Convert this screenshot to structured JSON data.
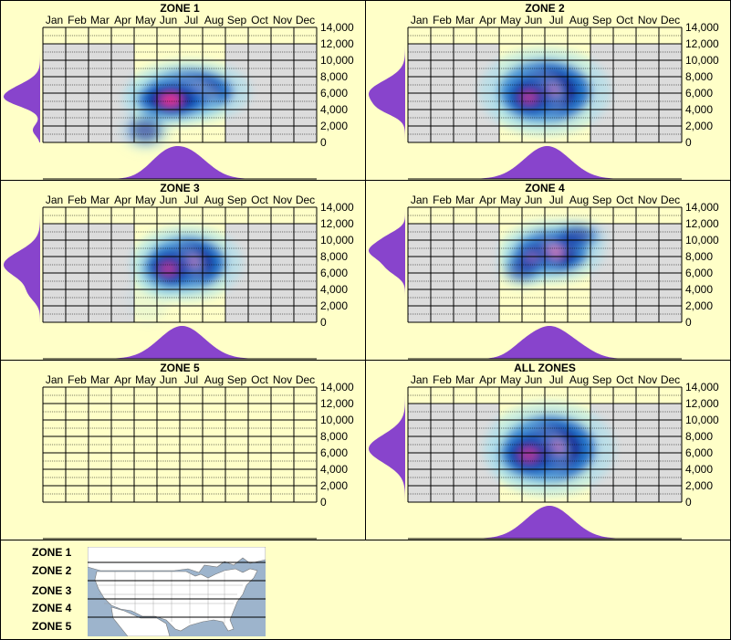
{
  "chart_data": [
    {
      "type": "heatmap",
      "title": "ZONE 1",
      "categories": [
        "Jan",
        "Feb",
        "Mar",
        "Apr",
        "May",
        "Jun",
        "Jul",
        "Aug",
        "Sep",
        "Oct",
        "Nov",
        "Dec"
      ],
      "ylim": [
        0,
        14000
      ],
      "yticks": [
        "0",
        "2,000",
        "4,000",
        "6,000",
        "8,000",
        "10,000",
        "12,000",
        "14,000"
      ],
      "shade_months": [
        0,
        1,
        2,
        3,
        8,
        9,
        10,
        11
      ],
      "shade_top": 12000,
      "empty": false,
      "hotspots": [
        {
          "month": 6.4,
          "elev": 6200,
          "sx": 0.95,
          "sy": 1000,
          "w": 1.0
        },
        {
          "month": 5.6,
          "elev": 5200,
          "sx": 0.8,
          "sy": 900,
          "w": 0.8
        },
        {
          "month": 4.5,
          "elev": 1500,
          "sx": 0.6,
          "sy": 1000,
          "w": 0.25
        }
      ],
      "elev_curve": [
        {
          "elev": 6000,
          "s": 1200,
          "w": 1.0
        },
        {
          "elev": 5000,
          "s": 800,
          "w": 0.4
        },
        {
          "elev": 1500,
          "s": 700,
          "w": 0.25
        }
      ],
      "month_curve": [
        {
          "month": 6.3,
          "s": 0.9,
          "w": 1.0
        },
        {
          "month": 5.2,
          "s": 0.7,
          "w": 0.5
        }
      ]
    },
    {
      "type": "heatmap",
      "title": "ZONE 2",
      "categories": [
        "Jan",
        "Feb",
        "Mar",
        "Apr",
        "May",
        "Jun",
        "Jul",
        "Aug",
        "Sep",
        "Oct",
        "Nov",
        "Dec"
      ],
      "ylim": [
        0,
        14000
      ],
      "yticks": [
        "0",
        "2,000",
        "4,000",
        "6,000",
        "8,000",
        "10,000",
        "12,000",
        "14,000"
      ],
      "shade_months": [
        0,
        1,
        2,
        3,
        8,
        9,
        10,
        11
      ],
      "shade_top": 12000,
      "empty": false,
      "hotspots": [
        {
          "month": 6.0,
          "elev": 6200,
          "sx": 1.0,
          "sy": 1400,
          "w": 1.0
        },
        {
          "month": 5.3,
          "elev": 5500,
          "sx": 0.7,
          "sy": 1200,
          "w": 0.5
        }
      ],
      "elev_curve": [
        {
          "elev": 6000,
          "s": 1500,
          "w": 1.0
        },
        {
          "elev": 4000,
          "s": 800,
          "w": 0.3
        }
      ],
      "month_curve": [
        {
          "month": 6.1,
          "s": 1.0,
          "w": 1.0
        }
      ]
    },
    {
      "type": "heatmap",
      "title": "ZONE 3",
      "categories": [
        "Jan",
        "Feb",
        "Mar",
        "Apr",
        "May",
        "Jun",
        "Jul",
        "Aug",
        "Sep",
        "Oct",
        "Nov",
        "Dec"
      ],
      "ylim": [
        0,
        14000
      ],
      "yticks": [
        "0",
        "2,000",
        "4,000",
        "6,000",
        "8,000",
        "10,000",
        "12,000",
        "14,000"
      ],
      "shade_months": [
        0,
        1,
        2,
        3,
        8,
        9,
        10,
        11
      ],
      "shade_top": 12000,
      "empty": false,
      "hotspots": [
        {
          "month": 6.3,
          "elev": 7200,
          "sx": 0.85,
          "sy": 1200,
          "w": 1.0
        },
        {
          "month": 5.5,
          "elev": 6500,
          "sx": 0.7,
          "sy": 1200,
          "w": 0.5
        },
        {
          "month": 4.6,
          "elev": 3000,
          "sx": 0.5,
          "sy": 1200,
          "w": 0.15
        }
      ],
      "elev_curve": [
        {
          "elev": 7000,
          "s": 1600,
          "w": 1.0
        },
        {
          "elev": 3500,
          "s": 1000,
          "w": 0.25
        }
      ],
      "month_curve": [
        {
          "month": 6.1,
          "s": 1.0,
          "w": 1.0
        }
      ]
    },
    {
      "type": "heatmap",
      "title": "ZONE 4",
      "categories": [
        "Jan",
        "Feb",
        "Mar",
        "Apr",
        "May",
        "Jun",
        "Jul",
        "Aug",
        "Sep",
        "Oct",
        "Nov",
        "Dec"
      ],
      "ylim": [
        0,
        14000
      ],
      "yticks": [
        "0",
        "2,000",
        "4,000",
        "6,000",
        "8,000",
        "10,000",
        "12,000",
        "14,000"
      ],
      "shade_months": [
        0,
        1,
        2,
        3,
        8,
        9,
        10,
        11
      ],
      "shade_top": 12000,
      "empty": false,
      "hotspots": [
        {
          "month": 6.3,
          "elev": 8600,
          "sx": 0.8,
          "sy": 1000,
          "w": 1.0
        },
        {
          "month": 5.4,
          "elev": 7800,
          "sx": 0.6,
          "sy": 1000,
          "w": 0.45
        },
        {
          "month": 7.4,
          "elev": 10500,
          "sx": 0.7,
          "sy": 800,
          "w": 0.3
        },
        {
          "month": 5.0,
          "elev": 6500,
          "sx": 0.6,
          "sy": 1000,
          "w": 0.2
        }
      ],
      "elev_curve": [
        {
          "elev": 8700,
          "s": 1100,
          "w": 1.0
        },
        {
          "elev": 6500,
          "s": 900,
          "w": 0.4
        },
        {
          "elev": 10500,
          "s": 800,
          "w": 0.3
        }
      ],
      "month_curve": [
        {
          "month": 6.2,
          "s": 0.8,
          "w": 1.0
        },
        {
          "month": 5.0,
          "s": 0.6,
          "w": 0.3
        },
        {
          "month": 7.5,
          "s": 0.7,
          "w": 0.3
        }
      ]
    },
    {
      "type": "heatmap",
      "title": "ZONE 5",
      "categories": [
        "Jan",
        "Feb",
        "Mar",
        "Apr",
        "May",
        "Jun",
        "Jul",
        "Aug",
        "Sep",
        "Oct",
        "Nov",
        "Dec"
      ],
      "ylim": [
        0,
        14000
      ],
      "yticks": [
        "0",
        "2,000",
        "4,000",
        "6,000",
        "8,000",
        "10,000",
        "12,000",
        "14,000"
      ],
      "shade_months": [],
      "shade_top": 12000,
      "empty": true,
      "hotspots": [],
      "elev_curve": [],
      "month_curve": []
    },
    {
      "type": "heatmap",
      "title": "ALL ZONES",
      "categories": [
        "Jan",
        "Feb",
        "Mar",
        "Apr",
        "May",
        "Jun",
        "Jul",
        "Aug",
        "Sep",
        "Oct",
        "Nov",
        "Dec"
      ],
      "ylim": [
        0,
        14000
      ],
      "yticks": [
        "0",
        "2,000",
        "4,000",
        "6,000",
        "8,000",
        "10,000",
        "12,000",
        "14,000"
      ],
      "shade_months": [
        0,
        1,
        2,
        3,
        8,
        9,
        10,
        11
      ],
      "shade_top": 12000,
      "empty": false,
      "hotspots": [
        {
          "month": 6.2,
          "elev": 6500,
          "sx": 1.0,
          "sy": 1500,
          "w": 1.0
        },
        {
          "month": 5.3,
          "elev": 5800,
          "sx": 0.8,
          "sy": 1300,
          "w": 0.5
        }
      ],
      "elev_curve": [
        {
          "elev": 6500,
          "s": 1700,
          "w": 1.0
        }
      ],
      "month_curve": [
        {
          "month": 6.2,
          "s": 1.0,
          "w": 1.0
        }
      ]
    }
  ],
  "legend": {
    "zones": [
      "ZONE 1",
      "ZONE 2",
      "ZONE 3",
      "ZONE 4",
      "ZONE 5"
    ],
    "map": {
      "land": "#ffffff",
      "water": "#9db4cc",
      "border": "#777777",
      "band_line": "#000000"
    }
  },
  "colors": {
    "background": "#ffffc8",
    "shade": "#dcdcdc",
    "grid": "#000000",
    "density": "#8844cc",
    "heat_low": "#a0e0f0",
    "heat_mid": "#0a63c8",
    "heat_deep": "#14148c",
    "heat_hot": "#ff2d8a"
  }
}
